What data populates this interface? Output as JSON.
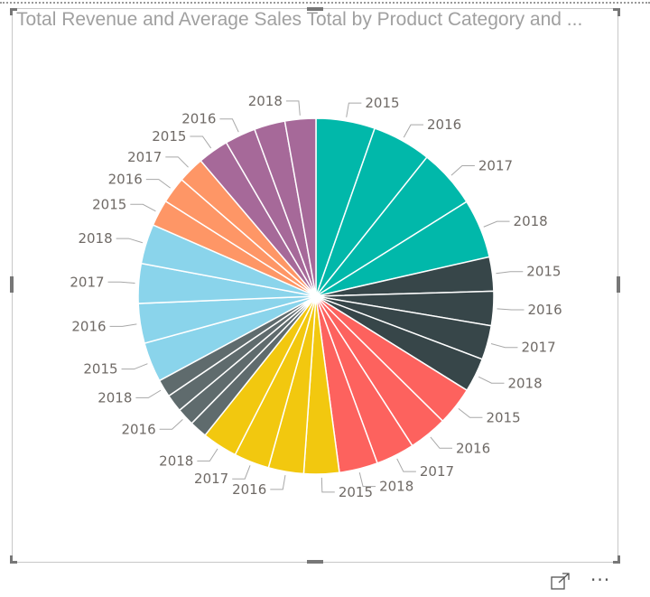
{
  "header": {
    "title": "Total Revenue and Average Sales Total by Product Category and ..."
  },
  "footer": {
    "focus_icon": "focus-mode-icon",
    "more_label": "···"
  },
  "chart_data": {
    "type": "pie",
    "title": "Total Revenue and Average Sales Total by Product Category and ...",
    "value_unit": "estimated percent of total",
    "legend": "none",
    "slices": [
      {
        "label": "2015",
        "color": "#01B8AA",
        "value": 5.35,
        "show_label": true
      },
      {
        "label": "2016",
        "color": "#01B8AA",
        "value": 5.35,
        "show_label": true
      },
      {
        "label": "2017",
        "color": "#01B8AA",
        "value": 5.35,
        "show_label": true
      },
      {
        "label": "2018",
        "color": "#01B8AA",
        "value": 5.35,
        "show_label": true
      },
      {
        "label": "2015",
        "color": "#374649",
        "value": 3.1,
        "show_label": true
      },
      {
        "label": "2016",
        "color": "#374649",
        "value": 3.1,
        "show_label": true
      },
      {
        "label": "2017",
        "color": "#374649",
        "value": 3.1,
        "show_label": true
      },
      {
        "label": "2018",
        "color": "#374649",
        "value": 3.1,
        "show_label": true
      },
      {
        "label": "2015",
        "color": "#FD625E",
        "value": 3.5,
        "show_label": true
      },
      {
        "label": "2016",
        "color": "#FD625E",
        "value": 3.5,
        "show_label": true
      },
      {
        "label": "2017",
        "color": "#FD625E",
        "value": 3.5,
        "show_label": true
      },
      {
        "label": "2018",
        "color": "#FD625E",
        "value": 3.5,
        "show_label": true
      },
      {
        "label": "2015",
        "color": "#F2C80F",
        "value": 3.2,
        "show_label": true
      },
      {
        "label": "2016",
        "color": "#F2C80F",
        "value": 3.2,
        "show_label": true
      },
      {
        "label": "2017",
        "color": "#F2C80F",
        "value": 3.2,
        "show_label": true
      },
      {
        "label": "2018",
        "color": "#F2C80F",
        "value": 3.2,
        "show_label": true
      },
      {
        "label": "2015",
        "color": "#5F6B6D",
        "value": 1.6,
        "show_label": false
      },
      {
        "label": "2016",
        "color": "#5F6B6D",
        "value": 1.6,
        "show_label": true
      },
      {
        "label": "2017",
        "color": "#5F6B6D",
        "value": 1.6,
        "show_label": false
      },
      {
        "label": "2018",
        "color": "#5F6B6D",
        "value": 1.6,
        "show_label": true
      },
      {
        "label": "2015",
        "color": "#8AD4EB",
        "value": 3.6,
        "show_label": true
      },
      {
        "label": "2016",
        "color": "#8AD4EB",
        "value": 3.6,
        "show_label": true
      },
      {
        "label": "2017",
        "color": "#8AD4EB",
        "value": 3.6,
        "show_label": true
      },
      {
        "label": "2018",
        "color": "#8AD4EB",
        "value": 3.6,
        "show_label": true
      },
      {
        "label": "2015",
        "color": "#FE9666",
        "value": 2.4,
        "show_label": true
      },
      {
        "label": "2016",
        "color": "#FE9666",
        "value": 2.4,
        "show_label": true
      },
      {
        "label": "2017",
        "color": "#FE9666",
        "value": 2.4,
        "show_label": true
      },
      {
        "label": "2015",
        "color": "#A66999",
        "value": 2.8,
        "show_label": true
      },
      {
        "label": "2016",
        "color": "#A66999",
        "value": 2.8,
        "show_label": true
      },
      {
        "label": "2017",
        "color": "#A66999",
        "value": 2.8,
        "show_label": false
      },
      {
        "label": "2018",
        "color": "#A66999",
        "value": 2.8,
        "show_label": true
      }
    ]
  }
}
